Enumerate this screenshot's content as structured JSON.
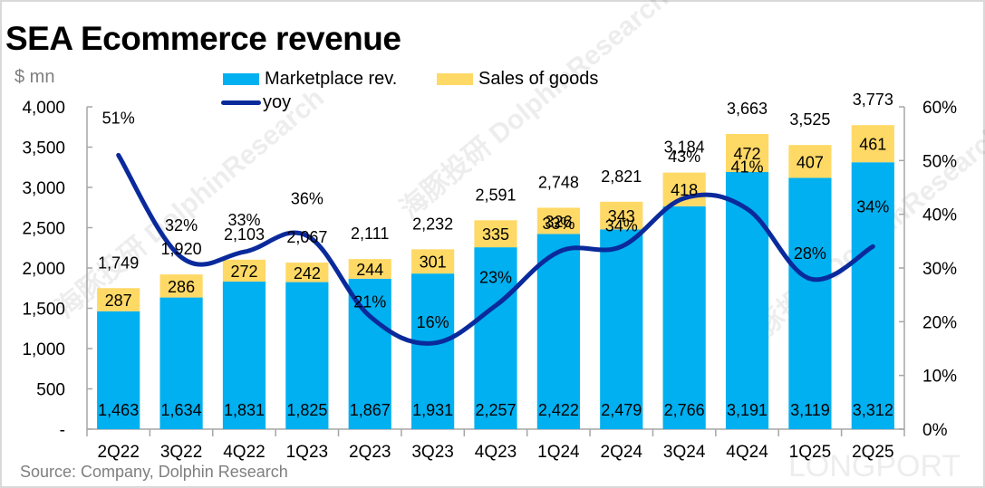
{
  "title": "SEA Ecommerce revenue",
  "unit_label": "$ mn",
  "source": "Source: Company, Dolphin Research",
  "watermarks": [
    "海豚投研 DolphinResearch",
    "LONGPORT"
  ],
  "colors": {
    "marketplace": "#00B0F0",
    "sales_of_goods": "#FFD966",
    "yoy": "#0A2A9C",
    "axis": "#a6a6a6",
    "frame": "#d9d9d9"
  },
  "legend": {
    "marketplace": "Marketplace rev.",
    "sales_of_goods": "Sales of goods",
    "yoy": "yoy"
  },
  "chart_data": {
    "type": "bar",
    "stacked": true,
    "title": "SEA Ecommerce revenue",
    "xlabel": "",
    "ylabel": "$ mn",
    "y2label": "",
    "categories": [
      "2Q22",
      "3Q22",
      "4Q22",
      "1Q23",
      "2Q23",
      "3Q23",
      "4Q23",
      "1Q24",
      "2Q24",
      "3Q24",
      "4Q24",
      "1Q25",
      "2Q25"
    ],
    "series": [
      {
        "name": "Marketplace rev.",
        "type": "bar",
        "axis": "left",
        "values": [
          1463,
          1634,
          1831,
          1825,
          1867,
          1931,
          2257,
          2422,
          2479,
          2766,
          3191,
          3119,
          3312
        ]
      },
      {
        "name": "Sales of goods",
        "type": "bar",
        "axis": "left",
        "values": [
          287,
          286,
          272,
          242,
          244,
          301,
          335,
          326,
          343,
          418,
          472,
          407,
          461
        ]
      },
      {
        "name": "yoy",
        "type": "line",
        "axis": "right",
        "values": [
          51,
          32,
          33,
          36,
          21,
          16,
          23,
          33,
          34,
          43,
          41,
          28,
          34
        ],
        "unit": "%"
      }
    ],
    "totals": [
      1749,
      1920,
      2103,
      2067,
      2111,
      2232,
      2591,
      2748,
      2821,
      3184,
      3663,
      3525,
      3773
    ],
    "ylim": [
      0,
      4000
    ],
    "yticks": [
      "-",
      "500",
      "1,000",
      "1,500",
      "2,000",
      "2,500",
      "3,000",
      "3,500",
      "4,000"
    ],
    "y2lim": [
      0,
      60
    ],
    "y2ticks": [
      "0%",
      "10%",
      "20%",
      "30%",
      "40%",
      "50%",
      "60%"
    ],
    "grid": false,
    "legend_position": "top"
  }
}
